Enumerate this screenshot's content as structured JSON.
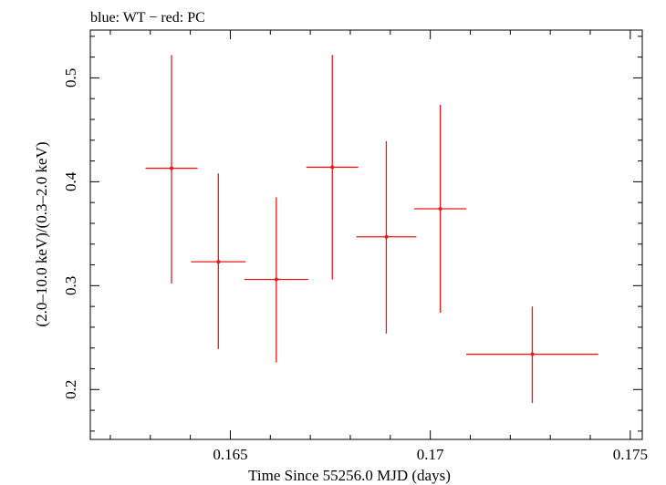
{
  "chart_data": {
    "type": "scatter",
    "title": "blue: WT − red: PC",
    "xlabel": "Time Since 55256.0 MJD (days)",
    "ylabel": "(2.0–10.0 keV)/(0.3–2.0 keV)",
    "xlim": [
      0.1615,
      0.1753
    ],
    "ylim": [
      0.152,
      0.546
    ],
    "xticks": [
      0.165,
      0.17,
      0.175
    ],
    "xtick_labels": [
      "0.165",
      "0.17",
      "0.175"
    ],
    "yticks": [
      0.2,
      0.3,
      0.4,
      0.5
    ],
    "ytick_labels": [
      "0.2",
      "0.3",
      "0.4",
      "0.5"
    ],
    "series": [
      {
        "name": "PC",
        "color": "#e8191e",
        "points": [
          {
            "x": 0.16353,
            "xerr": 0.00065,
            "y": 0.413,
            "ylo": 0.302,
            "yhi": 0.522
          },
          {
            "x": 0.1647,
            "xerr": 0.00068,
            "y": 0.323,
            "ylo": 0.239,
            "yhi": 0.408
          },
          {
            "x": 0.16615,
            "xerr": 0.0008,
            "y": 0.306,
            "ylo": 0.226,
            "yhi": 0.385
          },
          {
            "x": 0.16755,
            "xerr": 0.00065,
            "y": 0.414,
            "ylo": 0.306,
            "yhi": 0.522
          },
          {
            "x": 0.1689,
            "xerr": 0.00075,
            "y": 0.347,
            "ylo": 0.254,
            "yhi": 0.439
          },
          {
            "x": 0.17025,
            "xerr": 0.00065,
            "y": 0.374,
            "ylo": 0.274,
            "yhi": 0.474
          },
          {
            "x": 0.17255,
            "xerr": 0.00165,
            "y": 0.234,
            "ylo": 0.187,
            "yhi": 0.28
          }
        ]
      }
    ]
  }
}
